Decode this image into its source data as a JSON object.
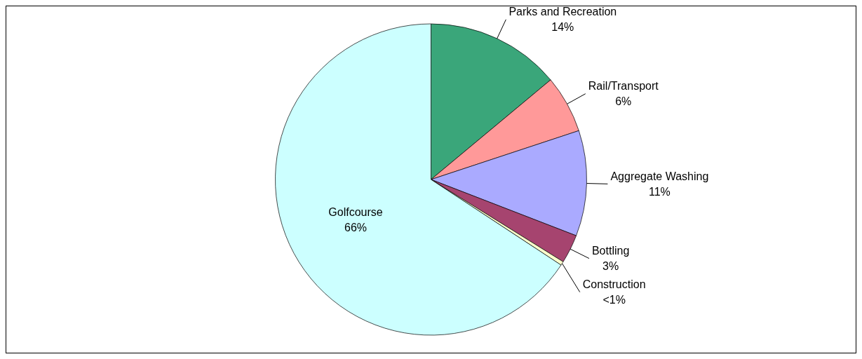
{
  "chart_data": {
    "type": "pie",
    "categories": [
      "Parks and Recreation",
      "Rail/Transport",
      "Aggregate Washing",
      "Bottling",
      "Construction",
      "Golfcourse"
    ],
    "values": [
      14,
      6,
      11,
      3,
      0.4,
      66
    ],
    "value_labels": [
      "14%",
      "6%",
      "11%",
      "3%",
      "<1%",
      "66%"
    ],
    "colors": [
      "#3aa67a",
      "#ff9999",
      "#aaaaff",
      "#a6446f",
      "#ffffcc",
      "#ccffff"
    ],
    "legend": false
  }
}
